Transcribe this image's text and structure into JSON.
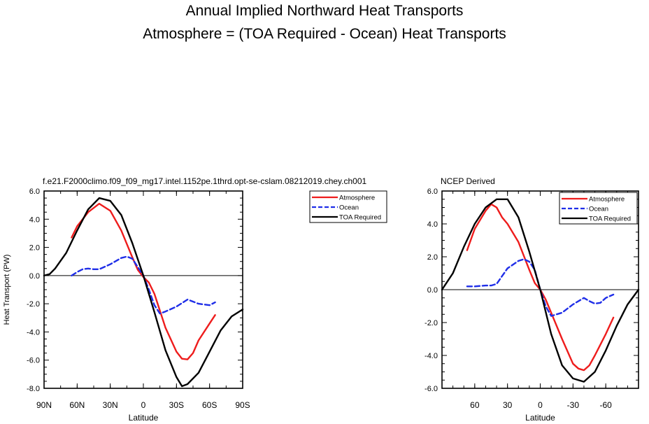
{
  "titles": {
    "line1": "Annual Implied Northward Heat Transports",
    "line2": "Atmosphere = (TOA Required - Ocean) Heat Transports"
  },
  "chart_data": [
    {
      "type": "line",
      "title": "f.e21.F2000climo.f09_f09_mg17.intel.1152pe.1thrd.opt-se-cslam.08212019.chey.ch001",
      "xlabel": "Latitude",
      "ylabel": "Heat Transport (PW)",
      "xlim": [
        90,
        -90
      ],
      "ylim": [
        -8,
        6
      ],
      "xticks": [
        90,
        60,
        30,
        0,
        -30,
        -60,
        -90
      ],
      "xtick_labels": [
        "90N",
        "60N",
        "30N",
        "0",
        "30S",
        "60S",
        "90S"
      ],
      "yticks": [
        6,
        4,
        2,
        0,
        -2,
        -4,
        -6,
        -8
      ],
      "ytick_labels": [
        "6.0",
        "4.0",
        "2.0",
        "0.0",
        "-2.0",
        "-4.0",
        "-6.0",
        "-8.0"
      ],
      "legend_position": "top-right, outside",
      "series": [
        {
          "name": "Atmosphere",
          "color": "#ee1c1c",
          "dash": "solid",
          "x": [
            65,
            60,
            50,
            40,
            30,
            20,
            10,
            5,
            0,
            -5,
            -10,
            -20,
            -30,
            -35,
            -40,
            -45,
            -50,
            -60,
            -65
          ],
          "y": [
            2.7,
            3.5,
            4.5,
            5.1,
            4.6,
            3.2,
            1.3,
            0.4,
            -0.1,
            -0.5,
            -1.3,
            -3.7,
            -5.4,
            -5.9,
            -5.95,
            -5.5,
            -4.6,
            -3.4,
            -2.8
          ]
        },
        {
          "name": "Ocean",
          "color": "#1f2ee8",
          "dash": "dashed",
          "x": [
            65,
            60,
            55,
            50,
            45,
            40,
            30,
            20,
            15,
            10,
            5,
            0,
            -5,
            -10,
            -15,
            -20,
            -30,
            -40,
            -50,
            -60,
            -65
          ],
          "y": [
            0.0,
            0.25,
            0.45,
            0.5,
            0.45,
            0.45,
            0.8,
            1.25,
            1.35,
            1.2,
            0.6,
            0.0,
            -1.0,
            -2.1,
            -2.7,
            -2.55,
            -2.2,
            -1.7,
            -2.0,
            -2.1,
            -1.9
          ]
        },
        {
          "name": "TOA Required",
          "color": "#000000",
          "dash": "solid",
          "x": [
            90,
            85,
            80,
            70,
            60,
            50,
            40,
            30,
            20,
            10,
            0,
            -10,
            -20,
            -30,
            -35,
            -40,
            -50,
            -60,
            -70,
            -80,
            -90
          ],
          "y": [
            0,
            0.1,
            0.5,
            1.6,
            3.2,
            4.7,
            5.5,
            5.3,
            4.3,
            2.3,
            0,
            -2.6,
            -5.3,
            -7.2,
            -7.85,
            -7.7,
            -6.9,
            -5.4,
            -3.9,
            -2.9,
            -2.4
          ]
        }
      ]
    },
    {
      "type": "line",
      "title": "NCEP Derived",
      "xlabel": "Latitude",
      "ylabel": "",
      "xlim": [
        90,
        -90
      ],
      "ylim": [
        -6,
        6
      ],
      "xticks": [
        60,
        30,
        0,
        -30,
        -60
      ],
      "xtick_labels": [
        "60",
        "30",
        "0",
        "-30",
        "-60"
      ],
      "yticks": [
        6,
        4,
        2,
        0,
        -2,
        -4,
        -6
      ],
      "ytick_labels": [
        "6.0",
        "4.0",
        "2.0",
        "0.0",
        "-2.0",
        "-4.0",
        "-6.0"
      ],
      "legend_position": "top-right, inside",
      "series": [
        {
          "name": "Atmosphere",
          "color": "#ee1c1c",
          "dash": "solid",
          "x": [
            67,
            60,
            50,
            45,
            40,
            35,
            30,
            20,
            10,
            5,
            0,
            -5,
            -10,
            -20,
            -30,
            -35,
            -40,
            -45,
            -50,
            -60,
            -67
          ],
          "y": [
            2.4,
            3.7,
            4.8,
            5.2,
            5.0,
            4.4,
            4.0,
            2.9,
            1.2,
            0.4,
            0.0,
            -0.6,
            -1.4,
            -3.0,
            -4.5,
            -4.8,
            -4.9,
            -4.6,
            -4.0,
            -2.7,
            -1.7
          ]
        },
        {
          "name": "Ocean",
          "color": "#1f2ee8",
          "dash": "dashed",
          "x": [
            67,
            60,
            50,
            45,
            40,
            30,
            20,
            15,
            10,
            5,
            0,
            -5,
            -10,
            -20,
            -30,
            -40,
            -45,
            -50,
            -55,
            -60,
            -67
          ],
          "y": [
            0.2,
            0.2,
            0.25,
            0.25,
            0.35,
            1.3,
            1.75,
            1.85,
            1.7,
            1.2,
            0.0,
            -1.0,
            -1.6,
            -1.4,
            -0.9,
            -0.5,
            -0.7,
            -0.85,
            -0.8,
            -0.5,
            -0.3
          ]
        },
        {
          "name": "TOA Required",
          "color": "#000000",
          "dash": "solid",
          "x": [
            90,
            80,
            70,
            60,
            50,
            40,
            30,
            20,
            10,
            0,
            -10,
            -20,
            -30,
            -40,
            -50,
            -60,
            -70,
            -80,
            -90
          ],
          "y": [
            0,
            1.0,
            2.6,
            4.0,
            5.0,
            5.5,
            5.5,
            4.4,
            2.3,
            0,
            -2.7,
            -4.6,
            -5.4,
            -5.6,
            -5.0,
            -3.7,
            -2.2,
            -0.9,
            0.0
          ]
        }
      ]
    }
  ]
}
